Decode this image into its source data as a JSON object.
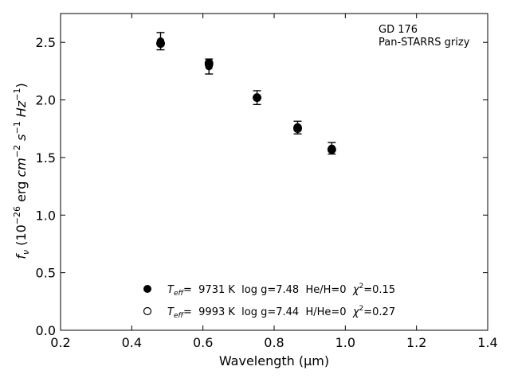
{
  "chart_data": {
    "type": "scatter",
    "object_name": "GD 176",
    "survey": "Pan-STARRS grizy",
    "xlabel": "Wavelength (μm)",
    "ylabel": {
      "prefix": "f",
      "prefix_sub": "ν",
      "unit_open": " (10",
      "unit_exp": "−26",
      "unit_rest": " erg ",
      "cm": "cm",
      "cm_exp": "−2",
      "s": "s",
      "s_exp": "−1",
      "hz": "Hz",
      "hz_exp": "−1",
      "close": ")"
    },
    "xlim": [
      0.2,
      1.4
    ],
    "ylim": [
      0.0,
      2.75
    ],
    "x_ticks": [
      "0.2",
      "0.4",
      "0.6",
      "0.8",
      "1.0",
      "1.2",
      "1.4"
    ],
    "y_ticks": [
      "0.0",
      "0.5",
      "1.0",
      "1.5",
      "2.0",
      "2.5"
    ],
    "grid": false,
    "observed": {
      "x": [
        0.481,
        0.617,
        0.752,
        0.866,
        0.962
      ],
      "y": [
        2.51,
        2.29,
        2.02,
        1.76,
        1.58
      ],
      "yerr": [
        0.075,
        0.065,
        0.06,
        0.055,
        0.05
      ]
    },
    "series": [
      {
        "marker": "filled-circle",
        "teff_label": "T",
        "teff_sub": "eff",
        "values_text": "=  9731 K  log g=7.48  He/H=0  ",
        "chi_label": "χ",
        "chi_exp": "2",
        "chi_value": "=0.15",
        "x": [
          0.481,
          0.617,
          0.752,
          0.866,
          0.962
        ],
        "y": [
          2.49,
          2.32,
          2.02,
          1.76,
          1.57
        ]
      },
      {
        "marker": "open-circle",
        "teff_label": "T",
        "teff_sub": "eff",
        "values_text": "=  9993 K  log g=7.44  H/He=0  ",
        "chi_label": "χ",
        "chi_exp": "2",
        "chi_value": "=0.27",
        "x": [
          0.481,
          0.617,
          0.752,
          0.866,
          0.962
        ],
        "y": [
          2.49,
          2.31,
          2.02,
          1.75,
          1.57
        ]
      }
    ],
    "legend_position": "lower-center",
    "colors": {
      "marker": "#000000",
      "axes": "#000000",
      "background": "#ffffff"
    }
  }
}
